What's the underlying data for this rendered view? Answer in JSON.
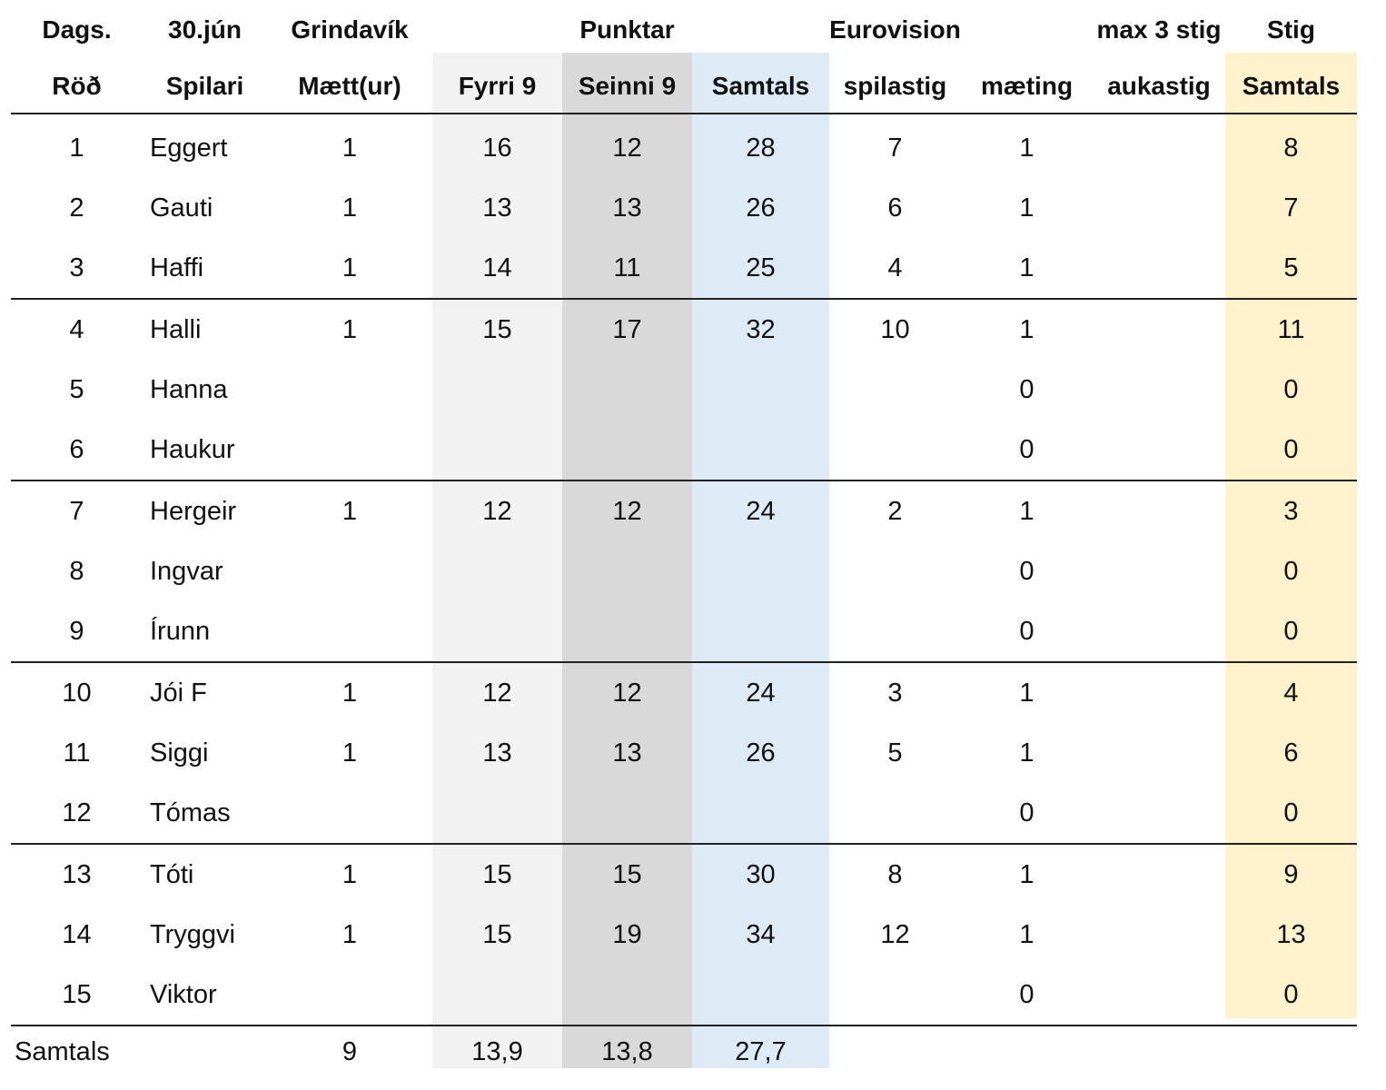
{
  "header": {
    "top": {
      "dags": "Dags.",
      "date": "30.jún",
      "course": "Grindavík",
      "punktar": "Punktar",
      "eurovision": "Eurovision",
      "max": "max 3 stig",
      "stig": "Stig"
    },
    "columns": {
      "rod": "Röð",
      "spilari": "Spilari",
      "maett": "Mætt(ur)",
      "fyrri": "Fyrri 9",
      "seinni": "Seinni 9",
      "samtals": "Samtals",
      "spilastig": "spilastig",
      "maeting": "mæting",
      "aukastig": "aukastig",
      "stig_samtals": "Samtals"
    }
  },
  "rows": [
    {
      "rod": "1",
      "name": "Eggert",
      "maett": "1",
      "fyrri": "16",
      "seinni": "12",
      "samtals": "28",
      "spilastig": "7",
      "maeting": "1",
      "aukastig": "",
      "stig": "8"
    },
    {
      "rod": "2",
      "name": "Gauti",
      "maett": "1",
      "fyrri": "13",
      "seinni": "13",
      "samtals": "26",
      "spilastig": "6",
      "maeting": "1",
      "aukastig": "",
      "stig": "7"
    },
    {
      "rod": "3",
      "name": "Haffi",
      "maett": "1",
      "fyrri": "14",
      "seinni": "11",
      "samtals": "25",
      "spilastig": "4",
      "maeting": "1",
      "aukastig": "",
      "stig": "5"
    },
    {
      "rod": "4",
      "name": "Halli",
      "maett": "1",
      "fyrri": "15",
      "seinni": "17",
      "samtals": "32",
      "spilastig": "10",
      "maeting": "1",
      "aukastig": "",
      "stig": "11"
    },
    {
      "rod": "5",
      "name": "Hanna",
      "maett": "",
      "fyrri": "",
      "seinni": "",
      "samtals": "",
      "spilastig": "",
      "maeting": "0",
      "aukastig": "",
      "stig": "0"
    },
    {
      "rod": "6",
      "name": "Haukur",
      "maett": "",
      "fyrri": "",
      "seinni": "",
      "samtals": "",
      "spilastig": "",
      "maeting": "0",
      "aukastig": "",
      "stig": "0"
    },
    {
      "rod": "7",
      "name": "Hergeir",
      "maett": "1",
      "fyrri": "12",
      "seinni": "12",
      "samtals": "24",
      "spilastig": "2",
      "maeting": "1",
      "aukastig": "",
      "stig": "3"
    },
    {
      "rod": "8",
      "name": "Ingvar",
      "maett": "",
      "fyrri": "",
      "seinni": "",
      "samtals": "",
      "spilastig": "",
      "maeting": "0",
      "aukastig": "",
      "stig": "0"
    },
    {
      "rod": "9",
      "name": "Írunn",
      "maett": "",
      "fyrri": "",
      "seinni": "",
      "samtals": "",
      "spilastig": "",
      "maeting": "0",
      "aukastig": "",
      "stig": "0"
    },
    {
      "rod": "10",
      "name": "Jói F",
      "maett": "1",
      "fyrri": "12",
      "seinni": "12",
      "samtals": "24",
      "spilastig": "3",
      "maeting": "1",
      "aukastig": "",
      "stig": "4"
    },
    {
      "rod": "11",
      "name": "Siggi",
      "maett": "1",
      "fyrri": "13",
      "seinni": "13",
      "samtals": "26",
      "spilastig": "5",
      "maeting": "1",
      "aukastig": "",
      "stig": "6"
    },
    {
      "rod": "12",
      "name": "Tómas",
      "maett": "",
      "fyrri": "",
      "seinni": "",
      "samtals": "",
      "spilastig": "",
      "maeting": "0",
      "aukastig": "",
      "stig": "0"
    },
    {
      "rod": "13",
      "name": "Tóti",
      "maett": "1",
      "fyrri": "15",
      "seinni": "15",
      "samtals": "30",
      "spilastig": "8",
      "maeting": "1",
      "aukastig": "",
      "stig": "9"
    },
    {
      "rod": "14",
      "name": "Tryggvi",
      "maett": "1",
      "fyrri": "15",
      "seinni": "19",
      "samtals": "34",
      "spilastig": "12",
      "maeting": "1",
      "aukastig": "",
      "stig": "13"
    },
    {
      "rod": "15",
      "name": "Viktor",
      "maett": "",
      "fyrri": "",
      "seinni": "",
      "samtals": "",
      "spilastig": "",
      "maeting": "0",
      "aukastig": "",
      "stig": "0"
    }
  ],
  "totals": {
    "label": "Samtals",
    "maett": "9",
    "fyrri": "13,9",
    "seinni": "13,8",
    "samtals": "27,7"
  }
}
